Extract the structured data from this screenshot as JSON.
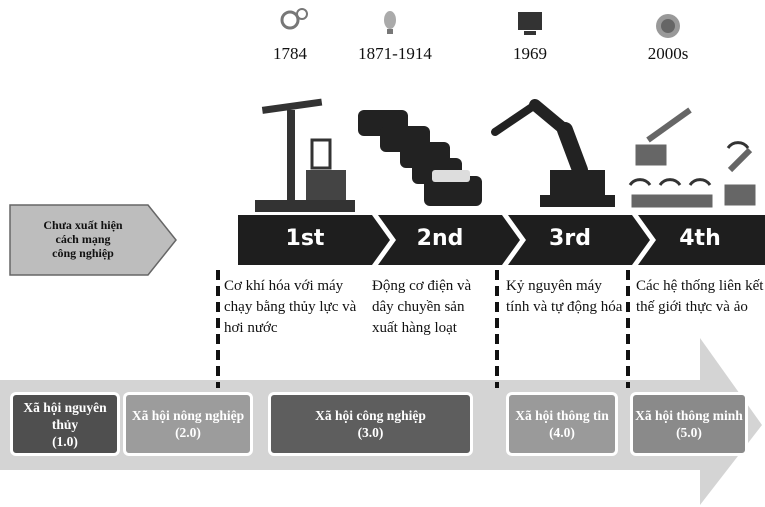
{
  "years": [
    "1784",
    "1871-1914",
    "1969",
    "2000s"
  ],
  "pre_revolution": [
    "Chưa xuất hiện",
    "cách mạng",
    "công nghiệp"
  ],
  "revolutions": [
    "1st",
    "2nd",
    "3rd",
    "4th"
  ],
  "descriptions": [
    "Cơ khí hóa với máy chạy bằng thủy lực và hơi nước",
    "Động cơ điện và dây chuyền sản xuất hàng loạt",
    "Kỷ nguyên máy tính và tự động hóa",
    "Các hệ thống liên kết thế giới thực và ảo"
  ],
  "societies": [
    {
      "name": "Xã hội nguyên thủy",
      "code": "(1.0)"
    },
    {
      "name": "Xã hội nông nghiệp",
      "code": "(2.0)"
    },
    {
      "name": "Xã hội công nghiệp",
      "code": "(3.0)"
    },
    {
      "name": "Xã hội thông tin",
      "code": "(4.0)"
    },
    {
      "name": "Xã hội thông minh",
      "code": "(5.0)"
    }
  ]
}
